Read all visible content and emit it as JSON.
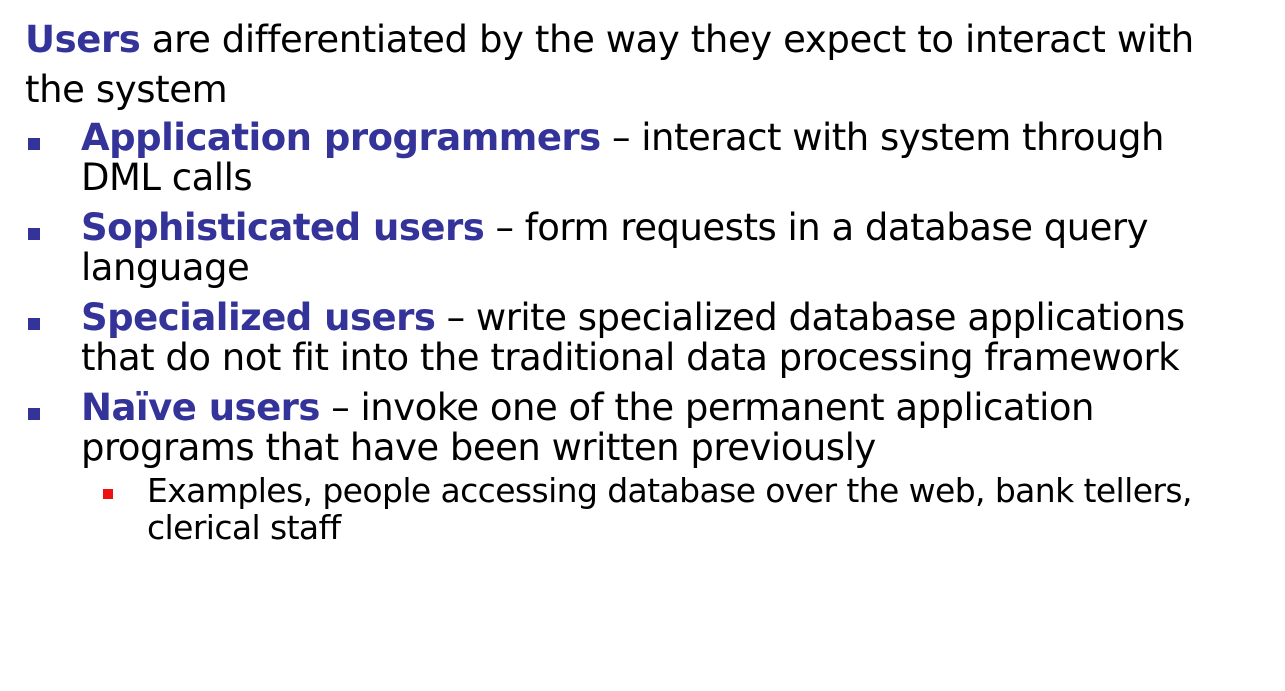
{
  "intro": {
    "term": "Users",
    "text": " are differentiated by the way they expect to interact with the system"
  },
  "bullets": [
    {
      "term": "Application programmers",
      "text": " – interact with system through DML calls"
    },
    {
      "term": "Sophisticated users",
      "text": " – form requests in a database query language"
    },
    {
      "term": "Specialized users",
      "text": " – write specialized database applications that do not fit into the traditional data processing framework"
    },
    {
      "term": "Naïve users",
      "text": " – invoke one of the permanent application programs that have been written previously",
      "sub_bullets": [
        {
          "text": "Examples, people accessing database over the web, bank tellers, clerical staff"
        }
      ]
    }
  ],
  "colors": {
    "term": "#333399",
    "bullet_marker": "#333399",
    "sub_bullet_marker": "#ee1111",
    "text": "#000000",
    "background": "#ffffff"
  }
}
